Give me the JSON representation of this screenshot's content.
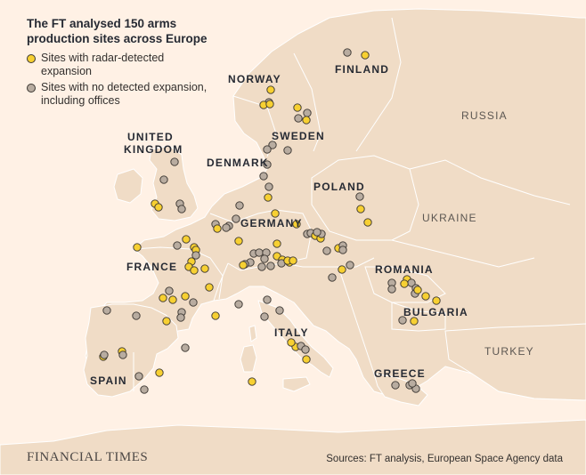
{
  "header": {
    "title": "The FT analysed 150 arms production sites across Europe"
  },
  "legend": {
    "items": [
      {
        "label": "Sites with radar-detected expansion",
        "color": "#f7d032",
        "icon": "yellow-circle"
      },
      {
        "label": "Sites with no detected expansion, including offices",
        "color": "#b8aca0",
        "icon": "grey-circle"
      }
    ]
  },
  "countries": {
    "norway": "NORWAY",
    "finland": "FINLAND",
    "russia": "RUSSIA",
    "sweden": "SWEDEN",
    "united_kingdom_1": "UNITED",
    "united_kingdom_2": "KINGDOM",
    "denmark": "DENMARK",
    "poland": "POLAND",
    "ukraine": "UKRAINE",
    "germany": "GERMANY",
    "france": "FRANCE",
    "romania": "ROMANIA",
    "bulgaria": "BULGARIA",
    "italy": "ITALY",
    "turkey": "TURKEY",
    "spain": "SPAIN",
    "greece": "GREECE"
  },
  "colors": {
    "background": "#fff1e5",
    "land": "#f0dcc6",
    "land_border": "#ffffff",
    "expansion": "#f7d032",
    "no_expansion": "#b8aca0",
    "outline": "#3a3530"
  },
  "footer": {
    "logo": "FINANCIAL TIMES",
    "source": "Sources: FT analysis, European Space Agency data"
  }
}
